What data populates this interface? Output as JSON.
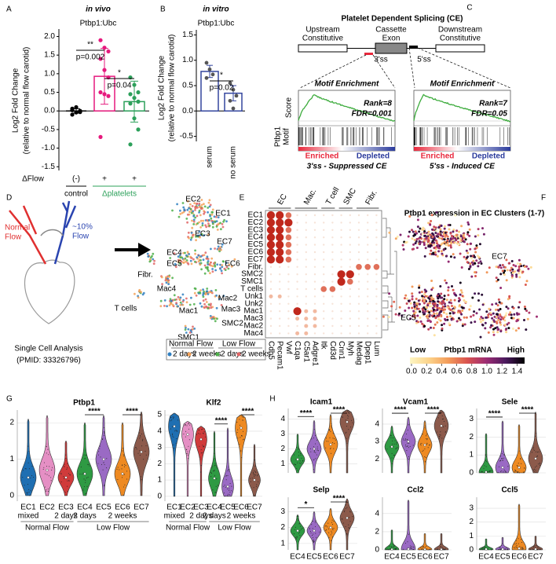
{
  "A": {
    "letter": "A",
    "title": "in vivo",
    "subtitle": "Ptbp1:Ubc",
    "ylabel": [
      "Log2 Fold Change",
      "(relative to normal flow carotid)"
    ],
    "ylim": [
      -1.6,
      2.2
    ],
    "yticks": [
      "-1.5",
      "-1.0",
      "-0.5",
      "0.0",
      "0.5",
      "1.0",
      "1.5",
      "2.0"
    ],
    "flow_label": "ΔFlow",
    "groups": [
      {
        "flow": "(-)",
        "color": "#000000",
        "mean": 0,
        "err": 0.06,
        "points": [
          0.06,
          -0.04,
          0.0,
          -0.1,
          0.1,
          -0.03,
          0.02
        ]
      },
      {
        "flow": "+",
        "color": "#e6197d",
        "mean": 0.93,
        "err": 0.75,
        "points": [
          1.9,
          1.7,
          1.6,
          1.4,
          1.1,
          0.9,
          0.5,
          0.45,
          0.4,
          -0.7
        ]
      },
      {
        "flow": "+",
        "color": "#2ca05a",
        "mean": 0.25,
        "err": 0.55,
        "points": [
          0.9,
          0.7,
          0.5,
          0.45,
          0.35,
          0.25,
          0.2,
          -0.2,
          -0.5,
          -0.9
        ]
      }
    ],
    "group_labels": [
      {
        "text": "control",
        "color": "#000000"
      },
      {
        "text": "Δplatelets",
        "color": "#2ca05a"
      }
    ],
    "significance": [
      {
        "stars": "**",
        "p": "p=0.002"
      },
      {
        "stars": "*",
        "p": "p=0.04"
      }
    ]
  },
  "B": {
    "letter": "B",
    "title": "in vitro",
    "subtitle": "Ptbp1:Ubc",
    "ylabel": [
      "Log2 Fold Change",
      "(relative to normal flow carotid)"
    ],
    "ylim": [
      -0.6,
      1.6
    ],
    "yticks": [
      "-0.5",
      "0.0",
      "0.5",
      "1.0",
      "1.5"
    ],
    "groups": [
      {
        "label": "serum",
        "color": "#34469e",
        "mean": 0.78,
        "err": 0.12,
        "points": [
          0.95,
          0.82,
          0.72,
          0.65
        ]
      },
      {
        "label": "no serum",
        "color": "#34469e",
        "mean": 0.35,
        "err": 0.15,
        "points": [
          0.55,
          0.42,
          0.3,
          0.2,
          0.05
        ]
      }
    ],
    "significance": [
      {
        "stars": "*",
        "p": "p=0.02"
      }
    ]
  },
  "C": {
    "letter": "C",
    "title": "Platelet Dependent Splicing (CE)",
    "upstream": [
      "Upstream",
      "Constitutive"
    ],
    "cassette": [
      "Cassette",
      "Exon"
    ],
    "downstream": [
      "Downstream",
      "Constitutive"
    ],
    "site3": "3'ss",
    "site5": "5'ss",
    "score_label": "Score",
    "motif_label": [
      "Ptbp1",
      "Motif"
    ],
    "gsea": [
      {
        "heading": "Motif Enrichment",
        "rank": "Rank=8",
        "fdr": "FDR=0.001",
        "enriched": "Enriched",
        "depleted": "Depleted",
        "caption": "3'ss - Suppressed CE"
      },
      {
        "heading": "Motif Enrichment",
        "rank": "Rank=7",
        "fdr": "FDR=0.05",
        "enriched": "Enriched",
        "depleted": "Depleted",
        "caption": "5'ss - Induced CE"
      }
    ]
  },
  "D": {
    "letter": "D",
    "normal_flow": [
      "Normal",
      "Flow"
    ],
    "low_flow": [
      "~10%",
      "Flow"
    ],
    "analysis": [
      "Single Cell Analysis",
      "(PMID: 33326796)"
    ],
    "clusters": [
      "EC2",
      "EC1",
      "EC3",
      "EC7",
      "EC4",
      "EC6",
      "EC5",
      "Fibr.",
      "Mac4",
      "Mac2",
      "Mac3",
      "Mac1",
      "T cells",
      "SMC2",
      "SMC1"
    ],
    "legend": {
      "groups": [
        "Normal Flow",
        "Low Flow"
      ],
      "items": [
        {
          "label": "2 days",
          "color": "#2f7fc1"
        },
        {
          "label": "2 weeks",
          "color": "#f4a259"
        },
        {
          "label": "2 days",
          "color": "#4daf4a"
        },
        {
          "label": "2 weeks",
          "color": "#e06666"
        }
      ]
    }
  },
  "E": {
    "letter": "E",
    "groups": [
      "EC",
      "Mac.",
      "T cell",
      "SMC",
      "Fibr."
    ],
    "rows": [
      "EC1",
      "EC2",
      "EC3",
      "EC4",
      "EC5",
      "EC6",
      "EC7",
      "Fibr.",
      "SMC2",
      "SMC1",
      "T cells",
      "Unk1",
      "Unk2",
      "Mac1",
      "Mac3",
      "Mac2",
      "Mac4"
    ],
    "genes": [
      "Cdh5",
      "Pecam1",
      "Vwf",
      "C1qa",
      "C5ar1",
      "Adgre1",
      "Itk",
      "Cd3d",
      "Cnn1",
      "Myh",
      "Medag",
      "Dpep1",
      "Lum"
    ],
    "expression": [
      [
        3,
        3,
        2,
        0,
        0,
        0,
        0,
        0,
        0,
        0,
        0,
        0,
        0
      ],
      [
        3,
        3,
        3,
        0,
        0,
        0,
        0,
        0,
        0,
        0,
        0,
        0,
        0
      ],
      [
        3,
        3,
        2,
        0,
        0,
        0,
        0,
        0,
        0,
        0,
        0,
        0,
        0
      ],
      [
        3,
        3,
        2,
        0,
        0,
        0,
        0,
        0,
        0,
        0,
        0,
        0,
        0
      ],
      [
        3,
        3,
        2,
        0,
        0,
        0,
        0,
        0,
        0,
        0,
        0,
        0,
        0
      ],
      [
        3,
        3,
        2,
        0,
        0,
        0,
        0,
        0,
        0,
        0,
        0,
        0,
        0
      ],
      [
        3,
        3,
        2,
        0,
        0,
        0,
        0,
        0,
        0,
        0,
        0,
        0,
        0
      ],
      [
        0,
        0,
        0,
        0,
        0,
        0,
        0,
        0,
        0,
        0,
        2,
        2,
        2
      ],
      [
        0,
        0,
        0,
        0,
        0,
        0,
        0,
        0,
        3,
        3,
        0,
        0,
        0
      ],
      [
        0,
        0,
        0,
        0,
        0,
        0,
        0,
        0,
        3,
        2,
        0,
        0,
        0
      ],
      [
        0,
        0,
        0,
        0,
        0,
        0,
        2,
        2,
        0,
        0,
        0,
        0,
        0
      ],
      [
        1,
        1,
        0,
        0,
        0,
        0,
        0,
        0,
        0,
        0,
        0,
        0,
        0
      ],
      [
        0,
        0,
        0,
        0,
        0,
        0,
        0,
        0,
        0,
        0,
        0,
        0,
        0
      ],
      [
        0,
        0,
        0,
        3,
        1,
        1,
        0,
        0,
        0,
        0,
        0,
        0,
        0
      ],
      [
        0,
        0,
        0,
        1,
        1,
        1,
        0,
        0,
        0,
        0,
        0,
        0,
        0
      ],
      [
        0,
        0,
        0,
        0,
        1,
        1,
        0,
        0,
        0,
        0,
        0,
        0,
        0
      ],
      [
        0,
        0,
        0,
        1,
        1,
        0,
        0,
        0,
        0,
        0,
        0,
        0,
        0
      ]
    ]
  },
  "F": {
    "letter": "F",
    "title": "Ptbp1 expression in EC Clusters (1-7)",
    "labels": [
      "EC7",
      "EC5"
    ],
    "colorbar": {
      "low": "Low",
      "title": "Ptbp1 mRNA",
      "high": "High",
      "ticks": [
        "0.0",
        "0.2",
        "0.4",
        "0.6",
        "0.8",
        "1.0",
        "1.2",
        "1.4"
      ],
      "colors": [
        "#fdf6c3",
        "#fcd38a",
        "#f39c5a",
        "#d9534f",
        "#9c2c74",
        "#4b1a5e",
        "#000000"
      ]
    }
  },
  "G": {
    "letter": "G",
    "clusters": [
      "EC1",
      "EC2",
      "EC3",
      "EC4",
      "EC5",
      "EC6",
      "EC7"
    ],
    "colors": [
      "#1f6fb2",
      "#e58fc4",
      "#d03b3b",
      "#2e9a43",
      "#9a6ac4",
      "#ee8a22",
      "#8c5a4b"
    ],
    "conditions": [
      "mixed",
      "2 days",
      "2 days",
      "2 weeks"
    ],
    "flows": [
      "Normal Flow",
      "Low Flow"
    ],
    "panels": [
      {
        "title": "Ptbp1",
        "ylim": [
          -0.15,
          2.35
        ],
        "yticks": [
          "0",
          "1",
          "2"
        ],
        "medians": [
          0.5,
          0.7,
          0.5,
          0.6,
          1.0,
          0.6,
          1.2
        ],
        "tops": [
          2.1,
          2.2,
          1.5,
          2.0,
          2.2,
          2.0,
          2.3
        ],
        "significance": [
          "****",
          "****"
        ]
      },
      {
        "title": "Klf2",
        "ylim": [
          -0.3,
          5.3
        ],
        "yticks": [
          "0",
          "1",
          "2",
          "3",
          "4",
          "5"
        ],
        "medians": [
          4.3,
          3.8,
          3.5,
          1.1,
          0.6,
          4.2,
          1.0
        ],
        "tops": [
          5.1,
          4.6,
          4.3,
          4.0,
          4.2,
          5.0,
          3.2
        ],
        "significance": [
          "****",
          "****"
        ]
      }
    ]
  },
  "H": {
    "letter": "H",
    "clusters": [
      "EC4",
      "EC5",
      "EC6",
      "EC7"
    ],
    "colors": [
      "#2e9a43",
      "#9a6ac4",
      "#ee8a22",
      "#8c5a4b"
    ],
    "panels": [
      {
        "title": "Icam1",
        "ylim": [
          0.4,
          4.7
        ],
        "yticks": [
          "1",
          "2",
          "3",
          "4"
        ],
        "medians": [
          1.3,
          2.0,
          2.3,
          3.8
        ],
        "tops": [
          3.0,
          3.9,
          4.3,
          4.6
        ],
        "significance": [
          "****",
          "****"
        ]
      },
      {
        "title": "Vcam1",
        "ylim": [
          1.2,
          4.9
        ],
        "yticks": [
          "2",
          "3",
          "4"
        ],
        "medians": [
          2.7,
          3.0,
          2.8,
          3.9
        ],
        "tops": [
          3.9,
          4.4,
          4.2,
          4.8
        ],
        "significance": [
          "****",
          "****"
        ]
      },
      {
        "title": "Sele",
        "ylim": [
          0,
          3.6
        ],
        "yticks": [
          "0",
          "1",
          "2",
          "3"
        ],
        "medians": [
          0.05,
          0.3,
          0.3,
          0.8
        ],
        "tops": [
          2.2,
          2.9,
          2.7,
          3.4
        ],
        "significance": [
          "****",
          "****"
        ]
      },
      {
        "title": "Selp",
        "ylim": [
          0.6,
          3.9
        ],
        "yticks": [
          "1",
          "2",
          "3"
        ],
        "medians": [
          1.8,
          1.8,
          2.0,
          2.6
        ],
        "tops": [
          2.8,
          3.0,
          3.2,
          3.8
        ],
        "significance": [
          "*",
          "****"
        ]
      },
      {
        "title": "Ccl2",
        "ylim": [
          0,
          5.8
        ],
        "yticks": [
          "0",
          "2",
          "4"
        ],
        "medians": [
          0.05,
          0.1,
          0.05,
          0.05
        ],
        "tops": [
          2.2,
          5.5,
          1.8,
          1.8
        ],
        "significance": []
      },
      {
        "title": "Ccl5",
        "ylim": [
          0,
          3.8
        ],
        "yticks": [
          "0",
          "1",
          "2",
          "3"
        ],
        "medians": [
          0.05,
          0.05,
          0.1,
          0.05
        ],
        "tops": [
          0.8,
          0.9,
          3.3,
          1.0
        ],
        "significance": []
      }
    ]
  }
}
